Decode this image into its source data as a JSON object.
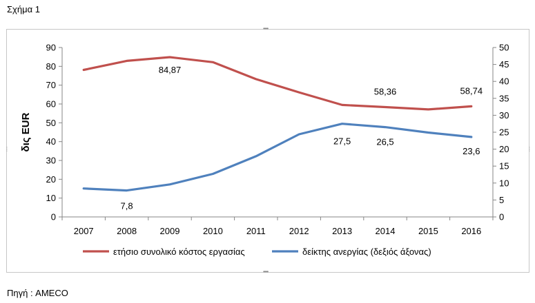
{
  "caption": "Σχήμα 1",
  "source": "Πηγή : AMECO",
  "chart_data": {
    "type": "line",
    "title": "",
    "x": [
      "2007",
      "2008",
      "2009",
      "2010",
      "2011",
      "2012",
      "2013",
      "2014",
      "2015",
      "2016"
    ],
    "ylabel": "δις EUR",
    "ylabel_right": "",
    "ylim": [
      0,
      90
    ],
    "yticks": [
      "0",
      "10",
      "20",
      "30",
      "40",
      "50",
      "60",
      "70",
      "80",
      "90"
    ],
    "ylim_right": [
      0,
      50
    ],
    "yticks_right": [
      "0",
      "5",
      "10",
      "15",
      "20",
      "25",
      "30",
      "35",
      "40",
      "45",
      "50"
    ],
    "grid": false,
    "legend_position": "bottom",
    "series": [
      {
        "name": "ετήσιο συνολικό κόστος εργασίας",
        "axis": "left",
        "color": "#c0504d",
        "values": [
          78.1,
          82.9,
          84.87,
          82.2,
          73.2,
          66.2,
          59.5,
          58.36,
          57.1,
          58.74
        ],
        "labels": [
          {
            "index": 2,
            "text": "84,87"
          },
          {
            "index": 7,
            "text": "58,36"
          },
          {
            "index": 9,
            "text": "58,74"
          }
        ]
      },
      {
        "name": "δείκτης ανεργίας (δεξιός άξονας)",
        "axis": "right",
        "color": "#4f81bd",
        "values": [
          8.4,
          7.8,
          9.6,
          12.7,
          17.9,
          24.4,
          27.5,
          26.5,
          24.9,
          23.6
        ],
        "labels": [
          {
            "index": 1,
            "text": "7,8"
          },
          {
            "index": 6,
            "text": "27,5"
          },
          {
            "index": 7,
            "text": "26,5"
          },
          {
            "index": 9,
            "text": "23,6"
          }
        ]
      }
    ]
  }
}
